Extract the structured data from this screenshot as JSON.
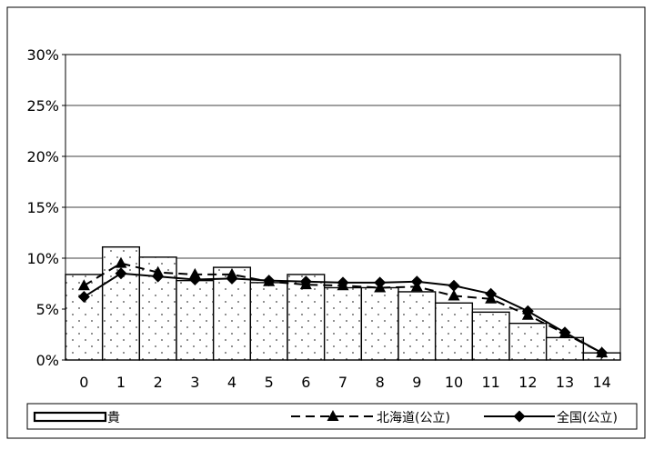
{
  "chart_data": {
    "type": "bar",
    "categories": [
      "0",
      "1",
      "2",
      "3",
      "4",
      "5",
      "6",
      "7",
      "8",
      "9",
      "10",
      "11",
      "12",
      "13",
      "14"
    ],
    "ylim": [
      0,
      30
    ],
    "yticks": [
      "0%",
      "5%",
      "10%",
      "15%",
      "20%",
      "25%",
      "30%"
    ],
    "grid": true,
    "legend_position": "bottom",
    "series": [
      {
        "name": "貴",
        "kind": "bar",
        "pattern": "dotted",
        "values": [
          8.4,
          11.1,
          10.1,
          7.8,
          9.1,
          7.6,
          8.4,
          7.1,
          7.1,
          6.7,
          5.6,
          4.7,
          3.6,
          2.2,
          0.7
        ]
      },
      {
        "name": "北海道(公立)",
        "kind": "line",
        "line_style": "dashed",
        "marker": "triangle",
        "values": [
          7.3,
          9.5,
          8.6,
          8.4,
          8.4,
          7.7,
          7.4,
          7.3,
          7.1,
          7.2,
          6.3,
          6.0,
          4.4,
          2.6,
          0.7
        ]
      },
      {
        "name": "全国(公立)",
        "kind": "line",
        "line_style": "solid",
        "marker": "diamond",
        "values": [
          6.2,
          8.5,
          8.2,
          7.9,
          8.0,
          7.8,
          7.7,
          7.6,
          7.6,
          7.7,
          7.3,
          6.5,
          4.8,
          2.7,
          0.7
        ]
      }
    ]
  }
}
